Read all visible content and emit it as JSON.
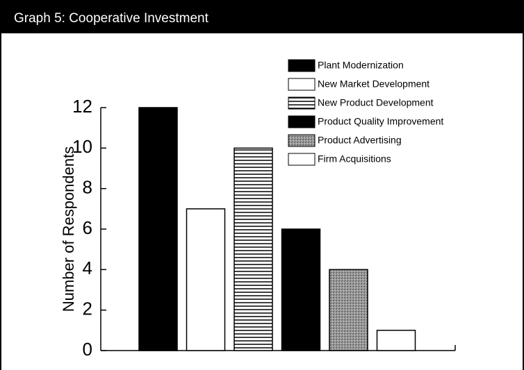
{
  "chart_data": {
    "type": "bar",
    "title": "Graph 5: Cooperative Investment",
    "y_label": "Number of Respondents",
    "categories": [
      "Plant Modernization",
      "New Market Development",
      "New Product Development",
      "Product Quality Improvement",
      "Product Advertising",
      "Firm Acquisitions"
    ],
    "values": [
      12,
      7,
      10,
      6,
      4,
      1
    ],
    "fills": [
      "black",
      "white",
      "stripes",
      "black",
      "stipple",
      "white"
    ],
    "ylim": [
      0,
      12
    ],
    "yticks": [
      0,
      2,
      4,
      6,
      8,
      10,
      12
    ],
    "grid": false,
    "legend": "top-right"
  }
}
